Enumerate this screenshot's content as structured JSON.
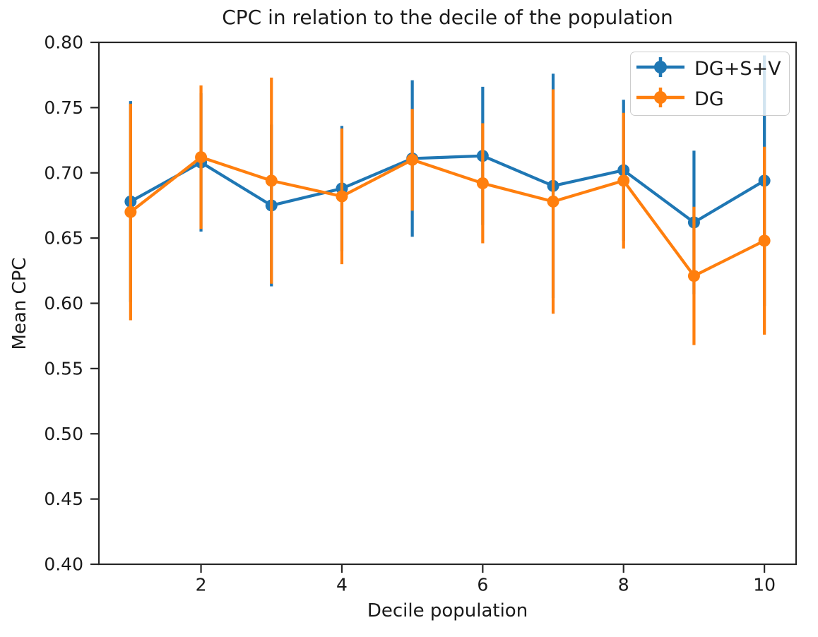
{
  "title": "CPC in relation to the decile of the population",
  "style": {
    "background": "#ffffff",
    "text_color": "#1a1a1a",
    "spine_color": "#262626",
    "blue": "#1f77b4",
    "orange": "#ff7f0e"
  },
  "legend": {
    "position": "upper right",
    "entries": [
      {
        "label": "DG+S+V",
        "color": "#1f77b4"
      },
      {
        "label": "DG",
        "color": "#ff7f0e"
      }
    ]
  },
  "chart_data": {
    "type": "line",
    "title": "CPC in relation to the decile of the population",
    "xlabel": "Decile population",
    "ylabel": "Mean CPC",
    "x": [
      1,
      2,
      3,
      4,
      5,
      6,
      7,
      8,
      9,
      10
    ],
    "xlim": [
      0.55,
      10.45
    ],
    "ylim": [
      0.4,
      0.8
    ],
    "xticks": [
      2,
      4,
      6,
      8,
      10
    ],
    "yticks": [
      0.4,
      0.45,
      0.5,
      0.55,
      0.6,
      0.65,
      0.7,
      0.75,
      0.8
    ],
    "grid": false,
    "marker": "circle",
    "error_style": "symmetric vertical bars, no caps",
    "legend_position": "upper right",
    "series": [
      {
        "name": "DG+S+V",
        "color": "#1f77b4",
        "values": [
          0.678,
          0.708,
          0.675,
          0.688,
          0.711,
          0.713,
          0.69,
          0.702,
          0.662,
          0.694
        ],
        "errors": [
          0.077,
          0.053,
          0.062,
          0.048,
          0.06,
          0.053,
          0.086,
          0.054,
          0.055,
          0.096
        ]
      },
      {
        "name": "DG",
        "color": "#ff7f0e",
        "values": [
          0.67,
          0.712,
          0.694,
          0.682,
          0.71,
          0.692,
          0.678,
          0.694,
          0.621,
          0.648
        ],
        "errors": [
          0.083,
          0.055,
          0.079,
          0.052,
          0.039,
          0.046,
          0.086,
          0.052,
          0.053,
          0.072
        ]
      }
    ]
  }
}
